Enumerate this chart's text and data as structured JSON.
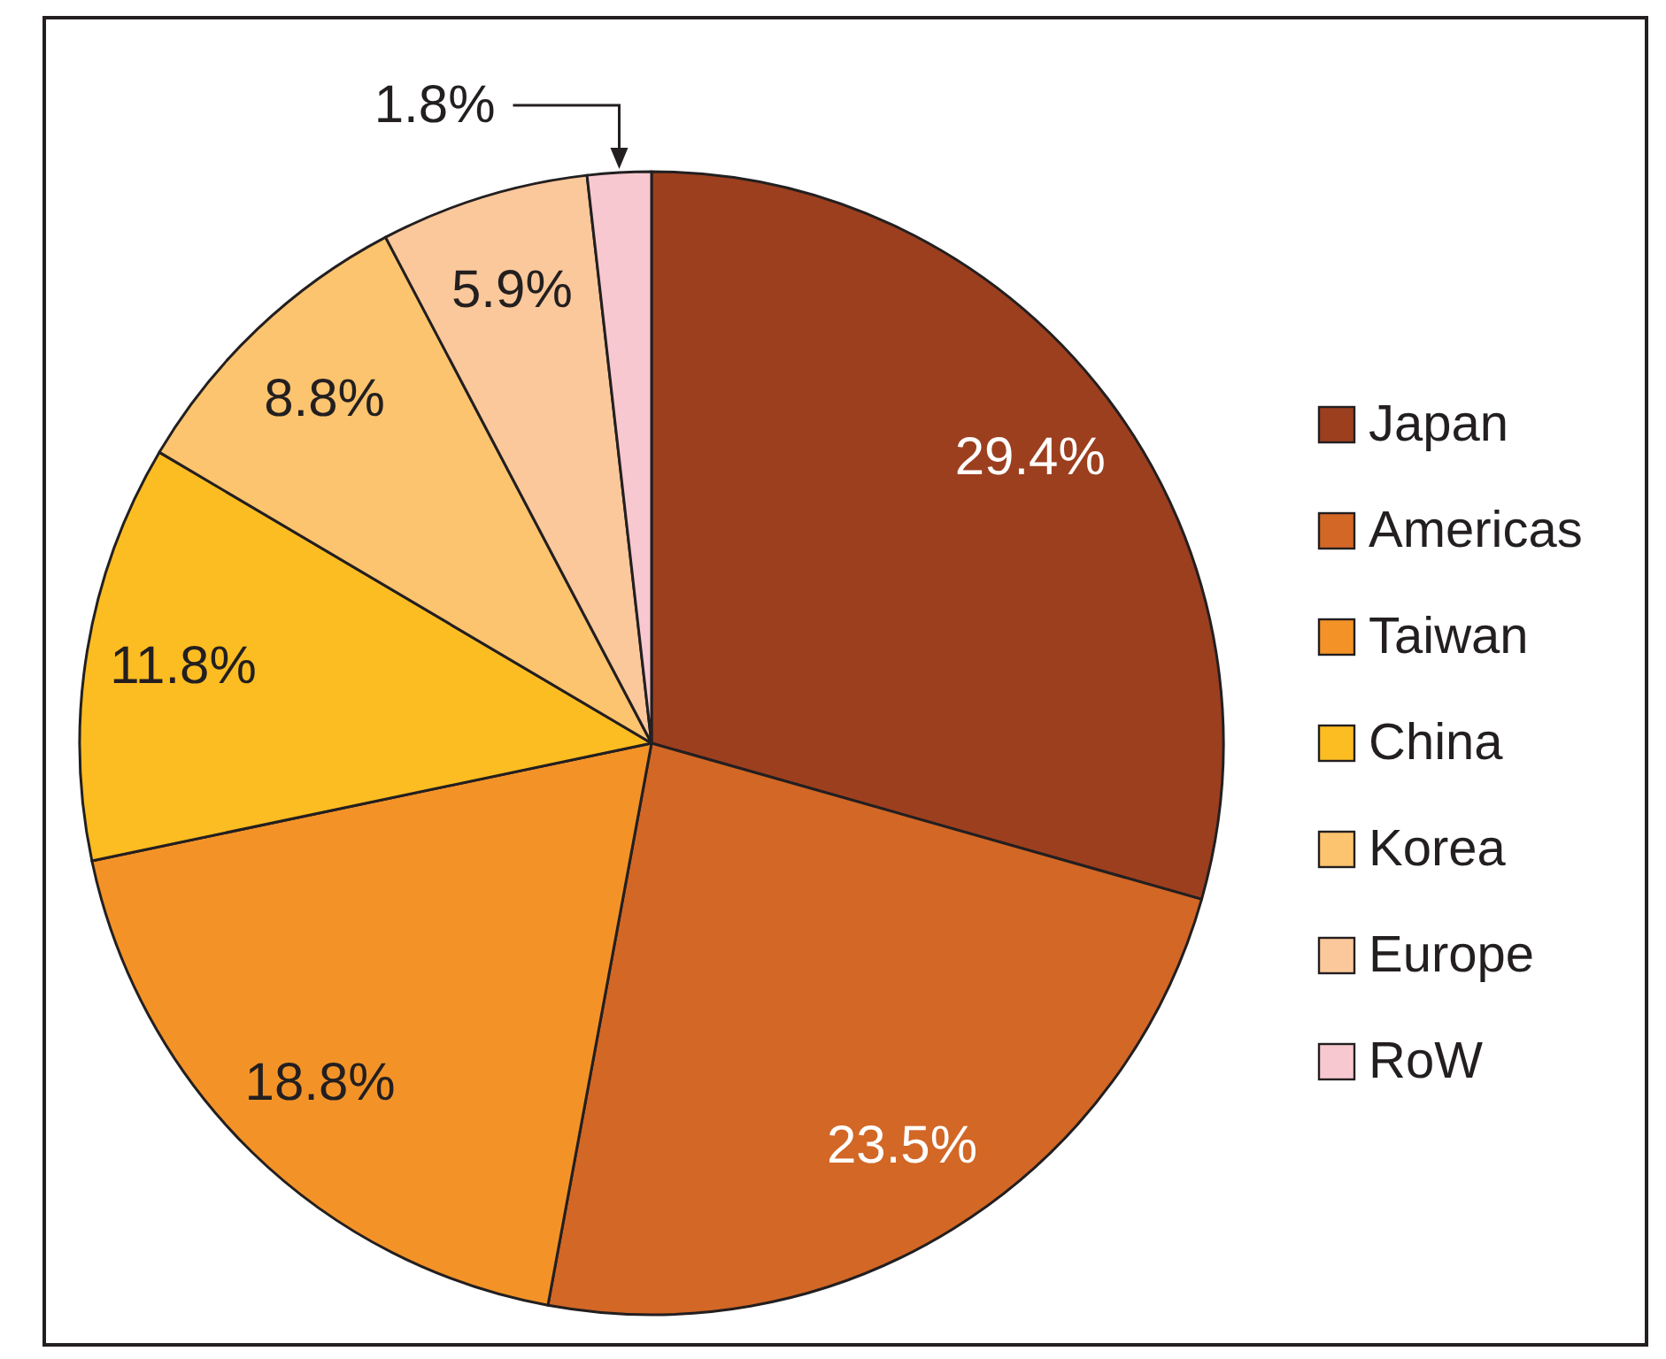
{
  "chart_data": {
    "type": "pie",
    "categories": [
      "Japan",
      "Americas",
      "Taiwan",
      "China",
      "Korea",
      "Europe",
      "RoW"
    ],
    "values": [
      29.4,
      23.5,
      18.8,
      11.8,
      8.8,
      5.9,
      1.8
    ],
    "colors": [
      "#9c3f1f",
      "#d26726",
      "#f39327",
      "#fcbd22",
      "#fcc46e",
      "#fbc89b",
      "#f7c8d0"
    ],
    "value_labels": [
      "29.4%",
      "23.5%",
      "18.8%",
      "11.8%",
      "8.8%",
      "5.9%",
      "1.8%"
    ],
    "legend": "right"
  }
}
